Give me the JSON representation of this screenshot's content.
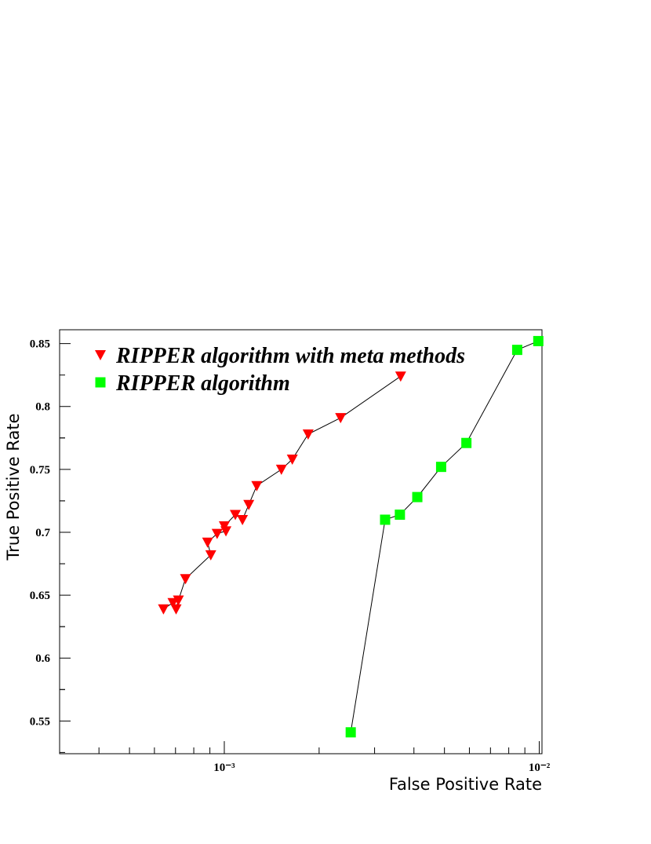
{
  "chart_data": {
    "type": "line",
    "xlabel": "False Positive Rate",
    "ylabel": "True Positive Rate",
    "xscale": "log",
    "xlim": [
      0.0003,
      0.0102
    ],
    "ylim": [
      0.524,
      0.861
    ],
    "xticks": [
      {
        "value": 0.001,
        "label": "10⁻³"
      },
      {
        "value": 0.01,
        "label": "10⁻²"
      }
    ],
    "yticks": [
      0.55,
      0.6,
      0.65,
      0.7,
      0.75,
      0.8,
      0.85
    ],
    "line_color": "#000000",
    "legend": "upper left",
    "series": [
      {
        "name": "RIPPER algorithm with meta methods",
        "color": "#ff0000",
        "marker": "triangle-down",
        "x": [
          0.000641,
          0.000687,
          0.000703,
          0.000715,
          0.000753,
          0.000906,
          0.000885,
          0.000949,
          0.001012,
          0.001,
          0.001084,
          0.001142,
          0.001196,
          0.001268,
          0.001518,
          0.001644,
          0.001846,
          0.00234,
          0.00363
        ],
        "values": [
          0.639,
          0.644,
          0.639,
          0.646,
          0.663,
          0.682,
          0.692,
          0.699,
          0.701,
          0.705,
          0.714,
          0.71,
          0.722,
          0.737,
          0.75,
          0.758,
          0.778,
          0.791,
          0.824
        ]
      },
      {
        "name": "RIPPER algorithm",
        "color": "#00ff00",
        "marker": "square",
        "x": [
          0.00252,
          0.00324,
          0.00361,
          0.0041,
          0.00488,
          0.00587,
          0.00851,
          0.00993
        ],
        "values": [
          0.541,
          0.71,
          0.714,
          0.728,
          0.752,
          0.771,
          0.845,
          0.852
        ]
      }
    ]
  }
}
